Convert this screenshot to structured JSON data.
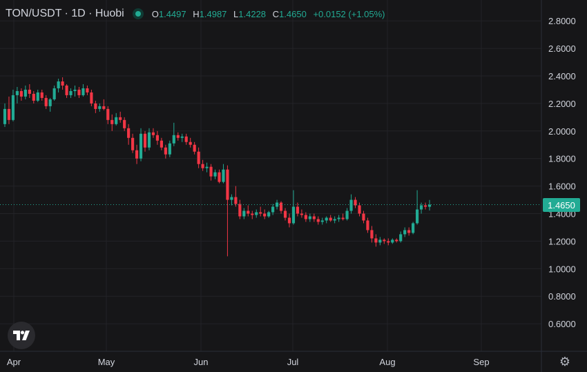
{
  "header": {
    "symbol": "TON/USDT",
    "meta": "· 1D · Huobi",
    "ohlc": {
      "o_label": "O",
      "o_value": "1.4497",
      "h_label": "H",
      "h_value": "1.4987",
      "l_label": "L",
      "l_value": "1.4228",
      "c_label": "C",
      "c_value": "1.4650",
      "change": "+0.0152 (+1.05%)"
    }
  },
  "last_price_label": "1.4650",
  "colors": {
    "up": "#22ab94",
    "down": "#f23645",
    "background": "#161618",
    "grid": "#232327",
    "text": "#d1d4dc"
  },
  "icons": {
    "logo": "tradingview-logo-icon",
    "settings": "gear-icon"
  },
  "chart_data": {
    "type": "candlestick",
    "title": "TON/USDT · 1D · Huobi",
    "y_axis": {
      "min": 0.45,
      "max": 2.9,
      "ticks": [
        "2.8000",
        "2.6000",
        "2.4000",
        "2.2000",
        "2.0000",
        "1.8000",
        "1.6000",
        "1.4000",
        "1.2000",
        "1.0000",
        "0.8000",
        "0.6000"
      ]
    },
    "x_axis": {
      "ticks": [
        "Apr",
        "May",
        "Jun",
        "Jul",
        "Aug",
        "Sep"
      ]
    },
    "grid": true,
    "last_price": 1.465,
    "candles": [
      {
        "o": 2.05,
        "h": 2.2,
        "l": 2.03,
        "c": 2.16
      },
      {
        "o": 2.16,
        "h": 2.25,
        "l": 2.05,
        "c": 2.08
      },
      {
        "o": 2.08,
        "h": 2.3,
        "l": 2.07,
        "c": 2.26
      },
      {
        "o": 2.26,
        "h": 2.32,
        "l": 2.2,
        "c": 2.29
      },
      {
        "o": 2.29,
        "h": 2.31,
        "l": 2.22,
        "c": 2.25
      },
      {
        "o": 2.25,
        "h": 2.33,
        "l": 2.23,
        "c": 2.3
      },
      {
        "o": 2.3,
        "h": 2.34,
        "l": 2.24,
        "c": 2.27
      },
      {
        "o": 2.27,
        "h": 2.29,
        "l": 2.2,
        "c": 2.22
      },
      {
        "o": 2.22,
        "h": 2.3,
        "l": 2.21,
        "c": 2.28
      },
      {
        "o": 2.28,
        "h": 2.3,
        "l": 2.22,
        "c": 2.24
      },
      {
        "o": 2.24,
        "h": 2.26,
        "l": 2.16,
        "c": 2.18
      },
      {
        "o": 2.18,
        "h": 2.24,
        "l": 2.14,
        "c": 2.23
      },
      {
        "o": 2.23,
        "h": 2.33,
        "l": 2.22,
        "c": 2.31
      },
      {
        "o": 2.31,
        "h": 2.38,
        "l": 2.28,
        "c": 2.36
      },
      {
        "o": 2.36,
        "h": 2.39,
        "l": 2.3,
        "c": 2.33
      },
      {
        "o": 2.33,
        "h": 2.34,
        "l": 2.24,
        "c": 2.26
      },
      {
        "o": 2.26,
        "h": 2.31,
        "l": 2.24,
        "c": 2.29
      },
      {
        "o": 2.29,
        "h": 2.33,
        "l": 2.25,
        "c": 2.3
      },
      {
        "o": 2.3,
        "h": 2.32,
        "l": 2.24,
        "c": 2.26
      },
      {
        "o": 2.26,
        "h": 2.34,
        "l": 2.25,
        "c": 2.31
      },
      {
        "o": 2.31,
        "h": 2.33,
        "l": 2.26,
        "c": 2.28
      },
      {
        "o": 2.28,
        "h": 2.3,
        "l": 2.18,
        "c": 2.2
      },
      {
        "o": 2.2,
        "h": 2.22,
        "l": 2.13,
        "c": 2.16
      },
      {
        "o": 2.16,
        "h": 2.2,
        "l": 2.14,
        "c": 2.18
      },
      {
        "o": 2.18,
        "h": 2.23,
        "l": 2.15,
        "c": 2.16
      },
      {
        "o": 2.16,
        "h": 2.18,
        "l": 2.05,
        "c": 2.08
      },
      {
        "o": 2.08,
        "h": 2.12,
        "l": 2.0,
        "c": 2.05
      },
      {
        "o": 2.05,
        "h": 2.13,
        "l": 2.04,
        "c": 2.1
      },
      {
        "o": 2.1,
        "h": 2.14,
        "l": 2.06,
        "c": 2.08
      },
      {
        "o": 2.08,
        "h": 2.1,
        "l": 2.0,
        "c": 2.02
      },
      {
        "o": 2.02,
        "h": 2.05,
        "l": 1.9,
        "c": 1.95
      },
      {
        "o": 1.95,
        "h": 1.98,
        "l": 1.84,
        "c": 1.86
      },
      {
        "o": 1.86,
        "h": 1.9,
        "l": 1.76,
        "c": 1.8
      },
      {
        "o": 1.8,
        "h": 2.02,
        "l": 1.78,
        "c": 1.98
      },
      {
        "o": 1.98,
        "h": 2.0,
        "l": 1.85,
        "c": 1.88
      },
      {
        "o": 1.88,
        "h": 2.02,
        "l": 1.86,
        "c": 1.99
      },
      {
        "o": 1.99,
        "h": 2.02,
        "l": 1.95,
        "c": 1.97
      },
      {
        "o": 1.97,
        "h": 2.0,
        "l": 1.9,
        "c": 1.93
      },
      {
        "o": 1.93,
        "h": 1.95,
        "l": 1.86,
        "c": 1.88
      },
      {
        "o": 1.88,
        "h": 1.9,
        "l": 1.8,
        "c": 1.83
      },
      {
        "o": 1.83,
        "h": 1.93,
        "l": 1.81,
        "c": 1.91
      },
      {
        "o": 1.91,
        "h": 2.06,
        "l": 1.89,
        "c": 1.97
      },
      {
        "o": 1.97,
        "h": 1.99,
        "l": 1.93,
        "c": 1.95
      },
      {
        "o": 1.95,
        "h": 1.98,
        "l": 1.92,
        "c": 1.96
      },
      {
        "o": 1.96,
        "h": 1.98,
        "l": 1.9,
        "c": 1.92
      },
      {
        "o": 1.92,
        "h": 1.95,
        "l": 1.88,
        "c": 1.9
      },
      {
        "o": 1.9,
        "h": 1.92,
        "l": 1.83,
        "c": 1.85
      },
      {
        "o": 1.85,
        "h": 1.88,
        "l": 1.73,
        "c": 1.76
      },
      {
        "o": 1.76,
        "h": 1.79,
        "l": 1.71,
        "c": 1.73
      },
      {
        "o": 1.73,
        "h": 1.77,
        "l": 1.7,
        "c": 1.74
      },
      {
        "o": 1.74,
        "h": 1.76,
        "l": 1.64,
        "c": 1.67
      },
      {
        "o": 1.67,
        "h": 1.72,
        "l": 1.65,
        "c": 1.7
      },
      {
        "o": 1.7,
        "h": 1.72,
        "l": 1.62,
        "c": 1.63
      },
      {
        "o": 1.63,
        "h": 1.76,
        "l": 1.62,
        "c": 1.72
      },
      {
        "o": 1.72,
        "h": 1.75,
        "l": 1.09,
        "c": 1.5
      },
      {
        "o": 1.5,
        "h": 1.54,
        "l": 1.46,
        "c": 1.52
      },
      {
        "o": 1.52,
        "h": 1.6,
        "l": 1.45,
        "c": 1.47
      },
      {
        "o": 1.47,
        "h": 1.5,
        "l": 1.36,
        "c": 1.38
      },
      {
        "o": 1.38,
        "h": 1.44,
        "l": 1.36,
        "c": 1.42
      },
      {
        "o": 1.42,
        "h": 1.46,
        "l": 1.38,
        "c": 1.4
      },
      {
        "o": 1.4,
        "h": 1.42,
        "l": 1.36,
        "c": 1.39
      },
      {
        "o": 1.39,
        "h": 1.43,
        "l": 1.37,
        "c": 1.41
      },
      {
        "o": 1.41,
        "h": 1.45,
        "l": 1.38,
        "c": 1.4
      },
      {
        "o": 1.4,
        "h": 1.43,
        "l": 1.36,
        "c": 1.38
      },
      {
        "o": 1.38,
        "h": 1.42,
        "l": 1.37,
        "c": 1.41
      },
      {
        "o": 1.41,
        "h": 1.47,
        "l": 1.39,
        "c": 1.45
      },
      {
        "o": 1.45,
        "h": 1.5,
        "l": 1.43,
        "c": 1.48
      },
      {
        "o": 1.48,
        "h": 1.49,
        "l": 1.4,
        "c": 1.42
      },
      {
        "o": 1.42,
        "h": 1.44,
        "l": 1.35,
        "c": 1.37
      },
      {
        "o": 1.37,
        "h": 1.4,
        "l": 1.3,
        "c": 1.33
      },
      {
        "o": 1.33,
        "h": 1.57,
        "l": 1.32,
        "c": 1.45
      },
      {
        "o": 1.45,
        "h": 1.48,
        "l": 1.38,
        "c": 1.4
      },
      {
        "o": 1.4,
        "h": 1.43,
        "l": 1.37,
        "c": 1.39
      },
      {
        "o": 1.39,
        "h": 1.41,
        "l": 1.34,
        "c": 1.36
      },
      {
        "o": 1.36,
        "h": 1.4,
        "l": 1.34,
        "c": 1.38
      },
      {
        "o": 1.38,
        "h": 1.4,
        "l": 1.34,
        "c": 1.36
      },
      {
        "o": 1.36,
        "h": 1.38,
        "l": 1.32,
        "c": 1.34
      },
      {
        "o": 1.34,
        "h": 1.37,
        "l": 1.32,
        "c": 1.35
      },
      {
        "o": 1.35,
        "h": 1.38,
        "l": 1.33,
        "c": 1.37
      },
      {
        "o": 1.37,
        "h": 1.39,
        "l": 1.34,
        "c": 1.35
      },
      {
        "o": 1.35,
        "h": 1.38,
        "l": 1.33,
        "c": 1.36
      },
      {
        "o": 1.36,
        "h": 1.39,
        "l": 1.34,
        "c": 1.37
      },
      {
        "o": 1.37,
        "h": 1.4,
        "l": 1.35,
        "c": 1.36
      },
      {
        "o": 1.36,
        "h": 1.44,
        "l": 1.35,
        "c": 1.42
      },
      {
        "o": 1.42,
        "h": 1.54,
        "l": 1.4,
        "c": 1.5
      },
      {
        "o": 1.5,
        "h": 1.52,
        "l": 1.44,
        "c": 1.46
      },
      {
        "o": 1.46,
        "h": 1.48,
        "l": 1.38,
        "c": 1.4
      },
      {
        "o": 1.4,
        "h": 1.42,
        "l": 1.33,
        "c": 1.35
      },
      {
        "o": 1.35,
        "h": 1.37,
        "l": 1.26,
        "c": 1.28
      },
      {
        "o": 1.28,
        "h": 1.31,
        "l": 1.19,
        "c": 1.22
      },
      {
        "o": 1.22,
        "h": 1.25,
        "l": 1.16,
        "c": 1.19
      },
      {
        "o": 1.19,
        "h": 1.23,
        "l": 1.17,
        "c": 1.21
      },
      {
        "o": 1.21,
        "h": 1.22,
        "l": 1.18,
        "c": 1.2
      },
      {
        "o": 1.2,
        "h": 1.22,
        "l": 1.17,
        "c": 1.19
      },
      {
        "o": 1.19,
        "h": 1.22,
        "l": 1.18,
        "c": 1.21
      },
      {
        "o": 1.21,
        "h": 1.22,
        "l": 1.19,
        "c": 1.2
      },
      {
        "o": 1.2,
        "h": 1.27,
        "l": 1.19,
        "c": 1.25
      },
      {
        "o": 1.25,
        "h": 1.3,
        "l": 1.23,
        "c": 1.28
      },
      {
        "o": 1.28,
        "h": 1.3,
        "l": 1.24,
        "c": 1.26
      },
      {
        "o": 1.26,
        "h": 1.34,
        "l": 1.25,
        "c": 1.33
      },
      {
        "o": 1.33,
        "h": 1.57,
        "l": 1.32,
        "c": 1.43
      },
      {
        "o": 1.43,
        "h": 1.48,
        "l": 1.4,
        "c": 1.46
      },
      {
        "o": 1.46,
        "h": 1.48,
        "l": 1.43,
        "c": 1.45
      },
      {
        "o": 1.4497,
        "h": 1.4987,
        "l": 1.4228,
        "c": 1.465
      }
    ]
  }
}
